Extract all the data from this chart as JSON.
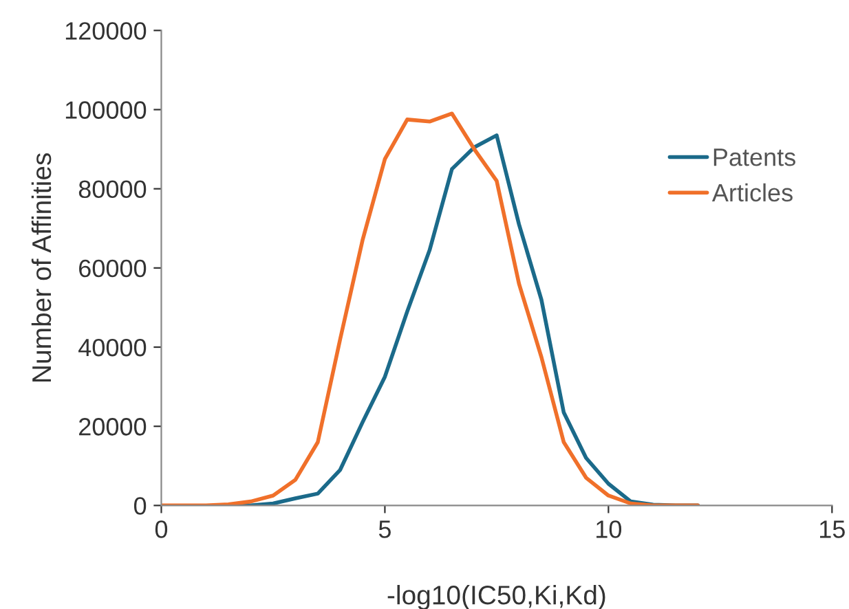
{
  "chart_data": {
    "type": "line",
    "xlabel": "-log10(IC50,Ki,Kd)",
    "ylabel": "Number of Affinities",
    "x": [
      0,
      0.5,
      1,
      1.5,
      2,
      2.5,
      3,
      3.5,
      4,
      4.5,
      5,
      5.5,
      6,
      6.5,
      7,
      7.5,
      8,
      8.5,
      9,
      9.5,
      10,
      10.5,
      11,
      11.5,
      12
    ],
    "series": [
      {
        "name": "Patents",
        "color": "#1b6a8a",
        "values": [
          null,
          null,
          null,
          0,
          0,
          500,
          1800,
          3000,
          9000,
          21000,
          32500,
          49000,
          64500,
          85000,
          90500,
          93500,
          71000,
          52000,
          23500,
          12000,
          5500,
          1000,
          200,
          0,
          0
        ]
      },
      {
        "name": "Articles",
        "color": "#f0702a",
        "values": [
          0,
          0,
          0,
          300,
          1000,
          2500,
          6500,
          16000,
          42000,
          67000,
          87500,
          97500,
          97000,
          99000,
          90000,
          82000,
          56000,
          37500,
          16000,
          7000,
          2500,
          500,
          0,
          0,
          0
        ]
      }
    ],
    "xlim": [
      0,
      15
    ],
    "xticks": [
      0,
      5,
      10,
      15
    ],
    "ylim": [
      0,
      120000
    ],
    "yticks": [
      0,
      20000,
      40000,
      60000,
      80000,
      100000,
      120000
    ],
    "grid": false,
    "legend": "top right",
    "marker": "none",
    "line_style": "solid"
  }
}
